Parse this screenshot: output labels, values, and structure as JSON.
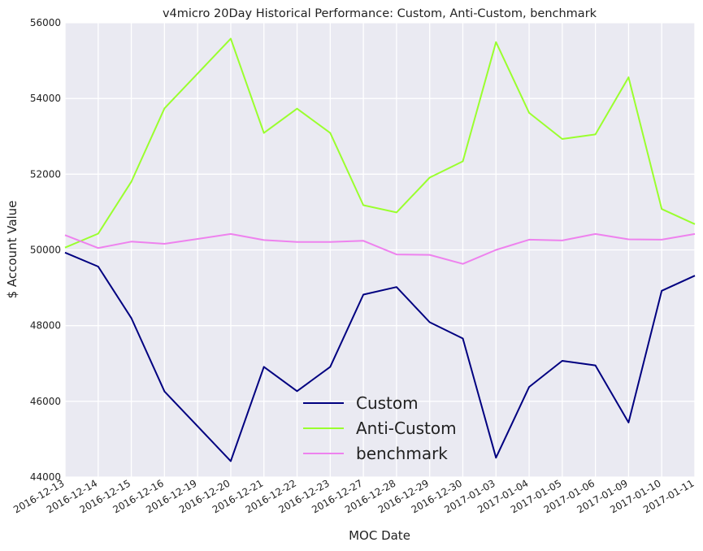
{
  "chart_data": {
    "type": "line",
    "title": "v4micro 20Day Historical Performance: Custom, Anti-Custom, benchmark",
    "xlabel": "MOC Date",
    "ylabel": "$ Account Value",
    "ylim": [
      44000,
      56000
    ],
    "yticks": [
      44000,
      46000,
      48000,
      50000,
      52000,
      54000,
      56000
    ],
    "grid": true,
    "legend_position": "lower-center",
    "x": [
      "2016-12-13",
      "2016-12-14",
      "2016-12-15",
      "2016-12-16",
      "2016-12-19",
      "2016-12-20",
      "2016-12-21",
      "2016-12-22",
      "2016-12-23",
      "2016-12-27",
      "2016-12-28",
      "2016-12-29",
      "2016-12-30",
      "2017-01-03",
      "2017-01-04",
      "2017-01-05",
      "2017-01-06",
      "2017-01-09",
      "2017-01-10",
      "2017-01-11"
    ],
    "series": [
      {
        "name": "Custom",
        "color": "#000080",
        "values": [
          49930,
          49560,
          48200,
          46260,
          45340,
          44420,
          46910,
          46270,
          46910,
          48820,
          49020,
          48090,
          47660,
          44510,
          46380,
          47070,
          46950,
          45440,
          48920,
          49320
        ]
      },
      {
        "name": "Anti-Custom",
        "color": "#9aff2e",
        "values": [
          50060,
          50430,
          51800,
          53740,
          54660,
          55580,
          53090,
          53730,
          53090,
          51180,
          50990,
          51910,
          52340,
          55490,
          53620,
          52930,
          53050,
          54560,
          51080,
          50680
        ]
      },
      {
        "name": "benchmark",
        "color": "#ee82ee",
        "values": [
          50390,
          50050,
          50220,
          50160,
          50290,
          50420,
          50260,
          50210,
          50210,
          50240,
          49880,
          49870,
          49630,
          50000,
          50270,
          50250,
          50420,
          50280,
          50270,
          50420
        ]
      }
    ]
  }
}
